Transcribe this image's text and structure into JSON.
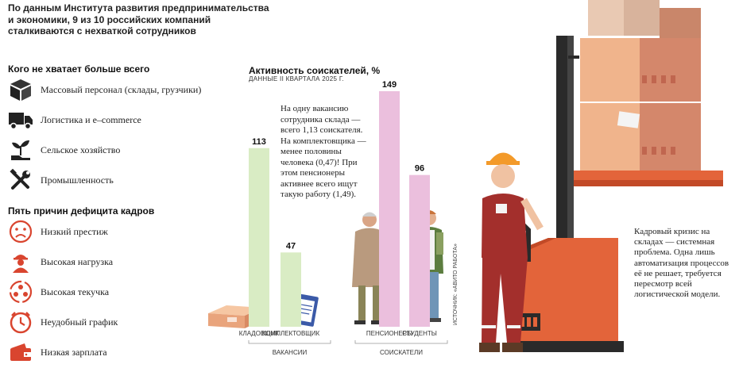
{
  "intro": "По данным Института развития предпринимательства и экономики, 9 из 10 российских компаний сталкиваются с нехваткой сотрудников",
  "shortage": {
    "title": "Кого не хватает больше всего",
    "items": [
      {
        "label": "Массовый персонал (склады, грузчики)",
        "icon": "box-icon"
      },
      {
        "label": "Логистика и e–commerce",
        "icon": "truck-icon"
      },
      {
        "label": "Сельское хозяйство",
        "icon": "plant-icon"
      },
      {
        "label": "Промышленность",
        "icon": "tools-icon"
      }
    ]
  },
  "reasons": {
    "title": "Пять причин дефицита кадров",
    "items": [
      {
        "label": "Низкий престиж",
        "icon": "sad-face-icon"
      },
      {
        "label": "Высокая нагрузка",
        "icon": "worker-icon"
      },
      {
        "label": "Высокая текучка",
        "icon": "people-cycle-icon"
      },
      {
        "label": "Неудобный график",
        "icon": "clock-icon"
      },
      {
        "label": "Низкая зарплата",
        "icon": "wallet-icon"
      }
    ]
  },
  "note": "На одну вакансию сотрудника склада — всего 1,13 соискателя. На комплектовщика — менее половины человека (0,47)! При этом пенсионеры активнее всего ищут такую работу (1,49).",
  "source": "ИСТОЧНИК: «АВИТО РАБОТА»",
  "right_note": "Кадровый кризис на складах — системная проблема. Одна лишь автоматизация процессов её не решает, требуется пересмотр всей логистической модели.",
  "colors": {
    "green": "#d9ecc4",
    "pink": "#ebbfdd",
    "accent": "#d9452f"
  },
  "chart_data": {
    "type": "bar",
    "title": "Активность соискателей, %",
    "subtitle": "ДАННЫЕ II КВАРТАЛА 2025 Г.",
    "categories": [
      "КЛАДОВЩИК",
      "КОМПЛЕКТОВЩИК",
      "ПЕНСИОНЕРЫ",
      "СТУДЕНТЫ"
    ],
    "values": [
      113,
      47,
      149,
      96
    ],
    "groups": [
      {
        "name": "ВАКАНСИИ",
        "categories": [
          "КЛАДОВЩИК",
          "КОМПЛЕКТОВЩИК"
        ],
        "color": "#d9ecc4"
      },
      {
        "name": "СОИСКАТЕЛИ",
        "categories": [
          "ПЕНСИОНЕРЫ",
          "СТУДЕНТЫ"
        ],
        "color": "#ebbfdd"
      }
    ],
    "ylim": [
      0,
      149
    ],
    "grid": false
  }
}
